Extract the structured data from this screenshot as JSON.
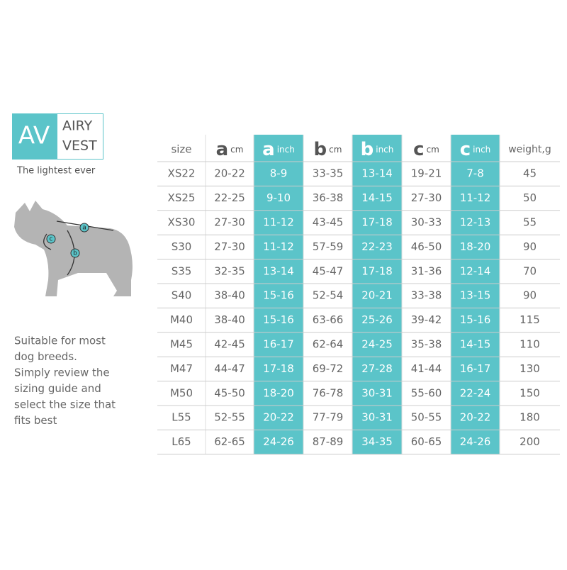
{
  "logo": {
    "mark": "AV",
    "name_line1": "AIRY",
    "name_line2": "VEST",
    "tagline": "The lightest ever"
  },
  "illustration": {
    "labels": [
      "a",
      "b",
      "c"
    ]
  },
  "description": [
    "Suitable for most",
    "dog breeds.",
    "Simply review the",
    "sizing guide and",
    "select the size that",
    "fits best"
  ],
  "table": {
    "header": {
      "size": "size",
      "columns": [
        {
          "letter": "a",
          "unit": "cm"
        },
        {
          "letter": "a",
          "unit": "inch"
        },
        {
          "letter": "b",
          "unit": "cm"
        },
        {
          "letter": "b",
          "unit": "inch"
        },
        {
          "letter": "c",
          "unit": "cm"
        },
        {
          "letter": "c",
          "unit": "inch"
        }
      ],
      "weight": "weight,g"
    },
    "rows": [
      [
        "XS22",
        "20-22",
        "8-9",
        "33-35",
        "13-14",
        "19-21",
        "7-8",
        "45"
      ],
      [
        "XS25",
        "22-25",
        "9-10",
        "36-38",
        "14-15",
        "27-30",
        "11-12",
        "50"
      ],
      [
        "XS30",
        "27-30",
        "11-12",
        "43-45",
        "17-18",
        "30-33",
        "12-13",
        "55"
      ],
      [
        "S30",
        "27-30",
        "11-12",
        "57-59",
        "22-23",
        "46-50",
        "18-20",
        "90"
      ],
      [
        "S35",
        "32-35",
        "13-14",
        "45-47",
        "17-18",
        "31-36",
        "12-14",
        "70"
      ],
      [
        "S40",
        "38-40",
        "15-16",
        "52-54",
        "20-21",
        "33-38",
        "13-15",
        "90"
      ],
      [
        "M40",
        "38-40",
        "15-16",
        "63-66",
        "25-26",
        "39-42",
        "15-16",
        "115"
      ],
      [
        "M45",
        "42-45",
        "16-17",
        "62-64",
        "24-25",
        "35-38",
        "14-15",
        "110"
      ],
      [
        "M47",
        "44-47",
        "17-18",
        "69-72",
        "27-28",
        "41-44",
        "16-17",
        "130"
      ],
      [
        "M50",
        "45-50",
        "18-20",
        "76-78",
        "30-31",
        "55-60",
        "22-24",
        "150"
      ],
      [
        "L55",
        "52-55",
        "20-22",
        "77-79",
        "30-31",
        "50-55",
        "20-22",
        "180"
      ],
      [
        "L65",
        "62-65",
        "24-26",
        "87-89",
        "34-35",
        "60-65",
        "24-26",
        "200"
      ]
    ]
  }
}
